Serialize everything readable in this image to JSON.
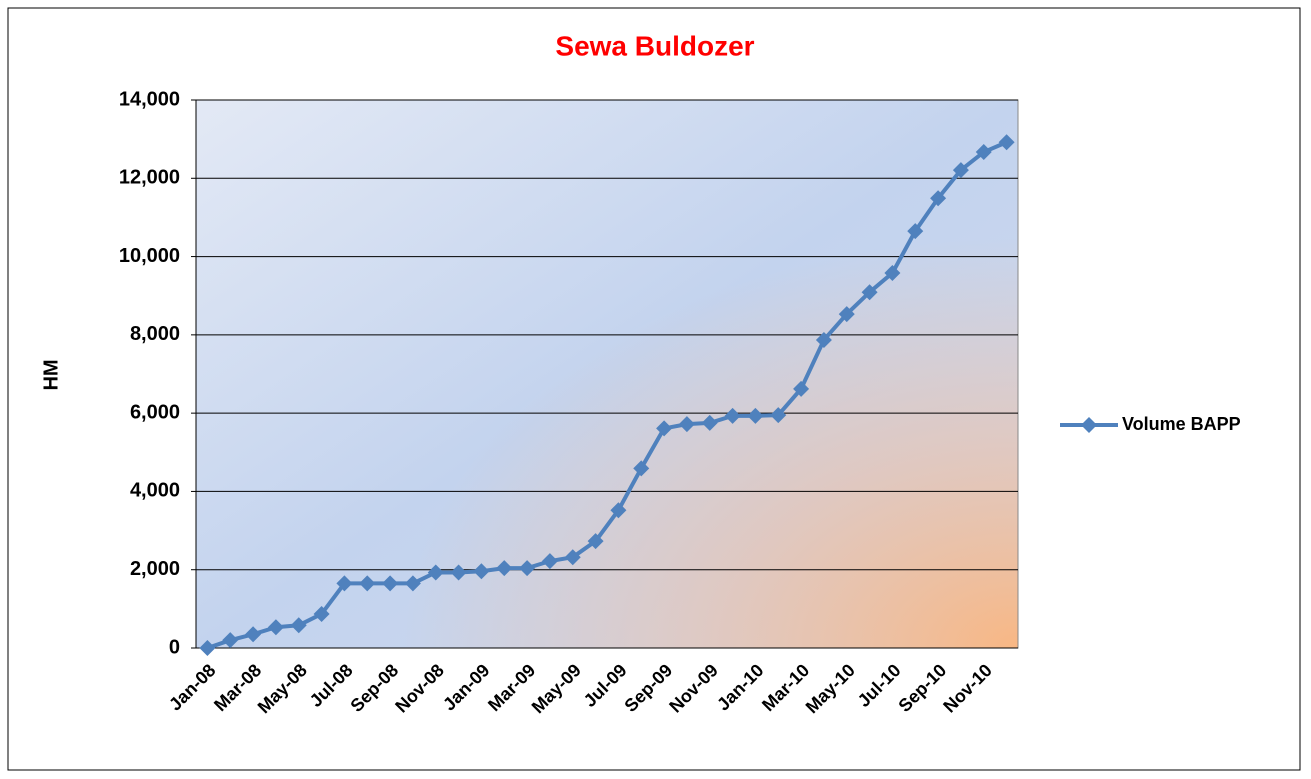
{
  "chart_data": {
    "type": "line",
    "title": "Sewa Buldozer",
    "y_label": "HM",
    "categories": [
      "Jan-08",
      null,
      "Mar-08",
      null,
      "May-08",
      null,
      "Jul-08",
      null,
      "Sep-08",
      null,
      "Nov-08",
      null,
      "Jan-09",
      null,
      "Mar-09",
      null,
      "May-09",
      null,
      "Jul-09",
      null,
      "Sep-09",
      null,
      "Nov-09",
      null,
      "Jan-10",
      null,
      "Mar-10",
      null,
      "May-10",
      null,
      "Jul-10",
      null,
      "Sep-10",
      null,
      "Nov-10",
      null
    ],
    "series": [
      {
        "name": "Volume BAPP",
        "color": "#4f81bd",
        "values": [
          0,
          200,
          350,
          530,
          580,
          870,
          1650,
          1650,
          1650,
          1650,
          1930,
          1930,
          1960,
          2040,
          2040,
          2220,
          2320,
          2730,
          3520,
          4590,
          5610,
          5720,
          5750,
          5930,
          5930,
          5950,
          6620,
          7870,
          8530,
          9090,
          9580,
          10650,
          11490,
          12210,
          12670,
          12920
        ]
      }
    ],
    "ylim": [
      0,
      14000
    ],
    "yticks": [
      0,
      {
        "value": 2000,
        "label": "2,000"
      },
      {
        "value": 4000,
        "label": "4,000"
      },
      {
        "value": 6000,
        "label": "6,000"
      },
      {
        "value": 8000,
        "label": "8,000"
      },
      {
        "value": 10000,
        "label": "10,000"
      },
      {
        "value": 12000,
        "label": "12,000"
      },
      {
        "value": 14000,
        "label": "14,000"
      }
    ],
    "grid": true,
    "legend": "right"
  }
}
